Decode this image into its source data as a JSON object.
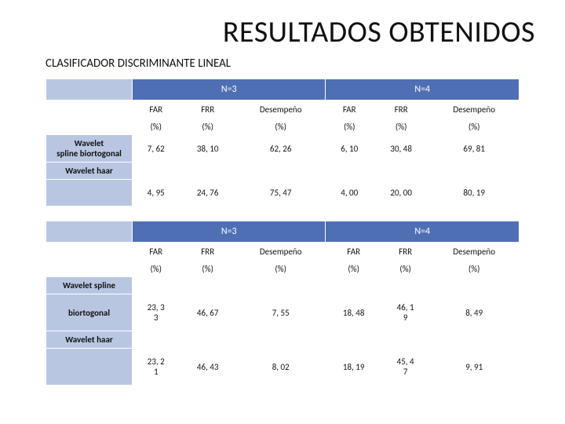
{
  "title": "RESULTADOS OBTENIDOS",
  "subtitle": "CLASIFICADOR  DISCRIMINANTE LINEAL",
  "hdr": {
    "n3": "N=3",
    "n4": "N=4",
    "far": "FAR",
    "frr": "FRR",
    "des": "Desempeño",
    "pct": "(%)"
  },
  "t1": {
    "r1_label_a": "Wavelet",
    "r1_label_b": "spline biortogonal",
    "r1": {
      "far3": "7, 62",
      "frr3": "38, 10",
      "des3": "62, 26",
      "far4": "6, 10",
      "frr4": "30, 48",
      "des4": "69, 81"
    },
    "r2_label": "Wavelet haar",
    "r2": {
      "far3": "4, 95",
      "frr3": "24, 76",
      "des3": "75, 47",
      "far4": "4, 00",
      "frr4": "20, 00",
      "des4": "80, 19"
    }
  },
  "t2": {
    "r1_label_a": "Wavelet spline",
    "r1_label_b": "biortogonal",
    "r1": {
      "far3_a": "23, 3",
      "far3_b": "3",
      "frr3": "46, 67",
      "des3": "7, 55",
      "far4": "18, 48",
      "frr4_a": "46, 1",
      "frr4_b": "9",
      "des4": "8, 49"
    },
    "r2_label": "Wavelet haar",
    "r2": {
      "far3_a": "23, 2",
      "far3_b": "1",
      "frr3": "46, 43",
      "des3": "8, 02",
      "far4": "18, 19",
      "frr4_a": "45, 4",
      "frr4_b": "7",
      "des4": "9, 91"
    }
  },
  "colors": {
    "group_hdr_bg": "#4f6fb5",
    "rowlabel_bg": "#b9c6e2",
    "border": "#ffffff"
  }
}
